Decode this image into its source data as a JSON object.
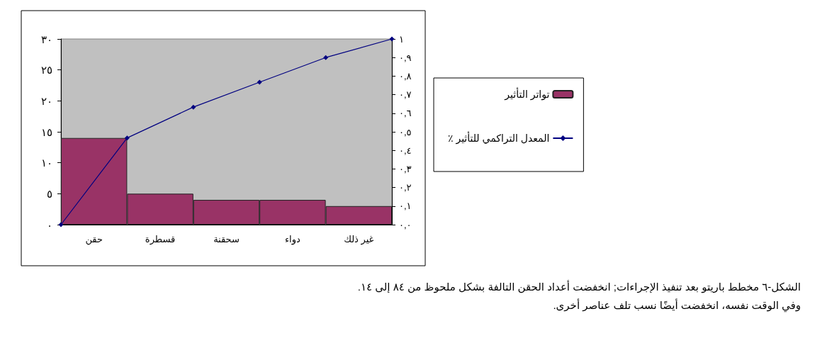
{
  "chart_data": {
    "type": "bar",
    "categories": [
      null,
      "حقن",
      null,
      "قسطرة",
      null,
      "سحقنة",
      null,
      "دواء",
      null,
      "غير ذلك",
      null
    ],
    "series": [
      {
        "name": "تواتر التأثير",
        "color": "#993366",
        "values": [
          null,
          14,
          null,
          5,
          null,
          4,
          null,
          4,
          null,
          3,
          null
        ]
      },
      {
        "name": "٪ المعدل التراكمي للتأثير",
        "type": "line",
        "axis": "y2",
        "color": "#000080",
        "values": [
          0,
          null,
          0.467,
          null,
          0.633,
          null,
          0.767,
          null,
          0.9,
          null,
          1
        ],
        "marker": "diamond",
        "line_style": "solid"
      }
    ],
    "ylim": [
      0,
      30
    ],
    "yticks": [
      {
        "value": 0,
        "label": "٠"
      },
      {
        "value": 5,
        "label": "٥"
      },
      {
        "value": 10,
        "label": "١٠"
      },
      {
        "value": 15,
        "label": "١٥"
      },
      {
        "value": 20,
        "label": "٢٠"
      },
      {
        "value": 25,
        "label": "٢٥"
      },
      {
        "value": 30,
        "label": "٣٠"
      }
    ],
    "y2lim": [
      0,
      1
    ],
    "y2ticks": [
      {
        "value": 0,
        "label": "٠,٠"
      },
      {
        "value": 0.1,
        "label": "٠,١"
      },
      {
        "value": 0.2,
        "label": "٠,٢"
      },
      {
        "value": 0.3,
        "label": "٠,٣"
      },
      {
        "value": 0.4,
        "label": "٠,٤"
      },
      {
        "value": 0.5,
        "label": "٠,٥"
      },
      {
        "value": 0.6,
        "label": "٠,٦"
      },
      {
        "value": 0.7,
        "label": "٠,٧"
      },
      {
        "value": 0.8,
        "label": "٠,٨"
      },
      {
        "value": 0.9,
        "label": "٠,٩"
      },
      {
        "value": 1,
        "label": "١"
      }
    ],
    "grid": false,
    "legend": "right",
    "annotations": [
      "الشكل-٦    مخطط باريتو بعد تنفيذ الإجراءات; انخفضت أعداد الحقن التالفة بشكل ملحوظ من ٨٤ إلى ١٤.",
      "وفي الوقت نفسه، انخفضت أيضًا نسب تلف عناصر أخرى."
    ]
  }
}
